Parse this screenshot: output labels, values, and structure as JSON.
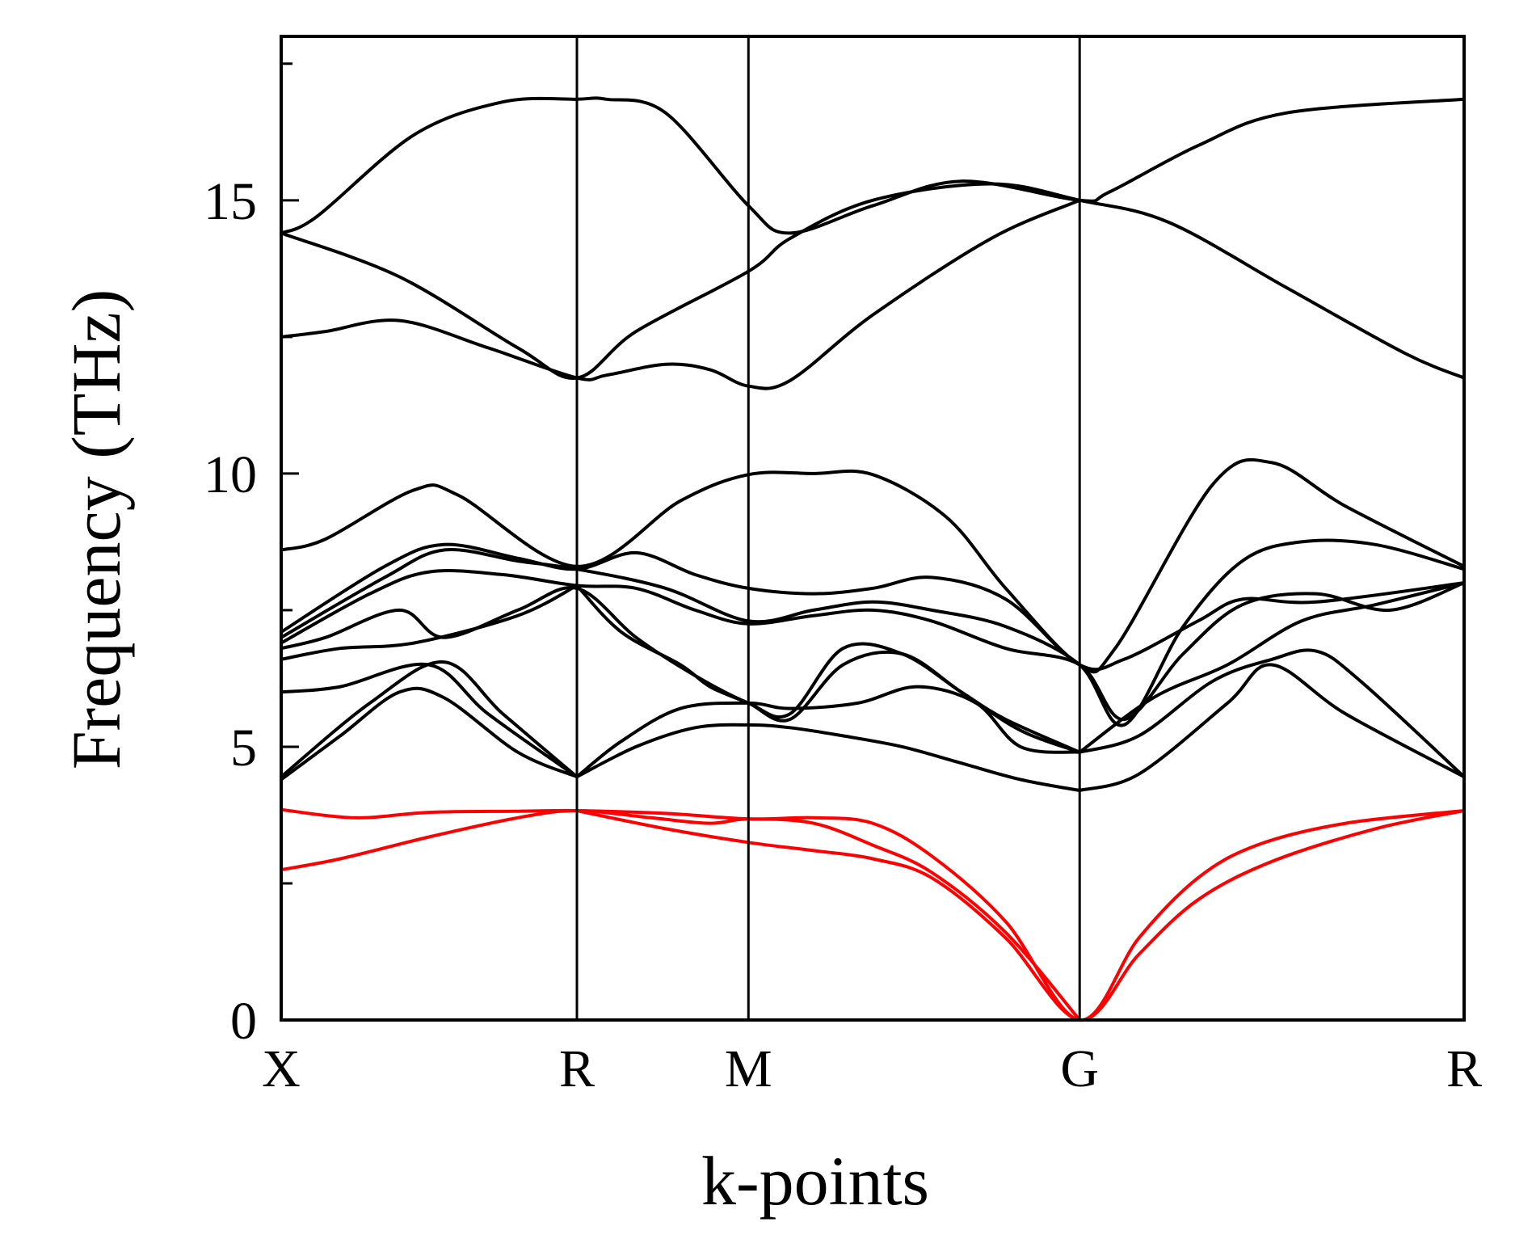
{
  "chart_data": {
    "type": "line",
    "title": "",
    "xlabel": "k-points",
    "ylabel": "Frequency (THz)",
    "ylim": [
      0,
      18
    ],
    "yticks": [
      0,
      5,
      10,
      15
    ],
    "y_minor_ticks": [
      2.5,
      7.5,
      12.5,
      17.5
    ],
    "xlim": [
      0,
      4
    ],
    "x_tick_positions": [
      0,
      1,
      1.58,
      2.7,
      4
    ],
    "x_tick_labels": [
      "X",
      "R",
      "M",
      "G",
      "R"
    ],
    "grid": false,
    "legend": "none",
    "colors": {
      "optical": "#000000",
      "acoustic": "#ff0000",
      "frame": "#000000"
    },
    "series": [
      {
        "group": "optical",
        "x": [
          0,
          0.12,
          0.45,
          0.75,
          1.0,
          1.1,
          1.3,
          1.58,
          1.72,
          2.0,
          2.3,
          2.7,
          2.8,
          3.1,
          3.4,
          4.0
        ],
        "values": [
          14.4,
          14.7,
          16.2,
          16.8,
          16.85,
          16.85,
          16.6,
          14.9,
          14.4,
          14.9,
          15.35,
          15.0,
          15.15,
          16.0,
          16.6,
          16.85
        ]
      },
      {
        "group": "optical",
        "x": [
          0,
          0.4,
          0.8,
          1.0,
          1.2,
          1.58,
          1.72,
          2.0,
          2.4,
          2.7,
          3.0,
          3.4,
          3.8,
          4.0
        ],
        "values": [
          14.4,
          13.6,
          12.3,
          11.75,
          12.6,
          13.7,
          14.3,
          15.0,
          15.3,
          15.0,
          14.6,
          13.4,
          12.2,
          11.75
        ]
      },
      {
        "group": "optical",
        "x": [
          0,
          0.15,
          0.4,
          0.7,
          1.0,
          1.1,
          1.3,
          1.45,
          1.58,
          1.72,
          2.0,
          2.4,
          2.7
        ],
        "values": [
          12.5,
          12.6,
          12.8,
          12.3,
          11.75,
          11.8,
          12.0,
          11.9,
          11.6,
          11.7,
          12.9,
          14.3,
          15.0
        ]
      },
      {
        "group": "optical",
        "x": [
          0,
          0.15,
          0.45,
          0.6,
          1.0,
          1.35,
          1.58,
          1.8,
          2.0,
          2.25,
          2.45,
          2.7,
          2.82,
          3.15,
          3.35,
          3.6,
          4.0
        ],
        "values": [
          8.6,
          8.8,
          9.7,
          9.6,
          8.3,
          9.5,
          9.98,
          10.0,
          9.98,
          9.2,
          7.9,
          6.5,
          6.8,
          9.8,
          10.2,
          9.4,
          8.3
        ]
      },
      {
        "group": "optical",
        "x": [
          0,
          0.35,
          0.55,
          0.8,
          1.0,
          1.2,
          1.4,
          1.58,
          1.8,
          2.0,
          2.2,
          2.45,
          2.7,
          2.85,
          3.1,
          3.25,
          3.5,
          4.0
        ],
        "values": [
          7.1,
          8.3,
          8.7,
          8.45,
          8.25,
          8.55,
          8.15,
          7.9,
          7.8,
          7.9,
          8.1,
          7.7,
          6.5,
          6.6,
          7.3,
          7.7,
          7.65,
          8.0
        ]
      },
      {
        "group": "optical",
        "x": [
          0,
          0.35,
          0.55,
          0.8,
          1.0,
          1.3,
          1.58,
          1.8,
          2.0,
          2.2,
          2.45,
          2.7,
          2.85,
          3.05,
          3.25,
          3.45,
          3.7,
          4.0
        ],
        "values": [
          7.0,
          8.1,
          8.6,
          8.4,
          8.25,
          7.9,
          7.3,
          7.5,
          7.65,
          7.5,
          7.2,
          6.5,
          5.4,
          7.2,
          8.4,
          8.75,
          8.7,
          8.25
        ]
      },
      {
        "group": "optical",
        "x": [
          0,
          0.3,
          0.5,
          0.75,
          1.0,
          1.2,
          1.4,
          1.58,
          1.8,
          2.0,
          2.2,
          2.45,
          2.7,
          2.85,
          3.05,
          3.25,
          3.5,
          3.75,
          4.0
        ],
        "values": [
          6.9,
          7.8,
          8.2,
          8.15,
          7.95,
          7.9,
          7.5,
          7.25,
          7.4,
          7.5,
          7.3,
          6.8,
          6.5,
          5.5,
          6.7,
          7.6,
          7.8,
          7.5,
          8.0
        ]
      },
      {
        "group": "optical",
        "x": [
          0,
          0.15,
          0.4,
          0.55,
          0.8,
          1.0,
          1.2,
          1.4,
          1.58,
          1.72,
          1.9,
          2.1,
          2.3,
          2.45,
          2.7
        ],
        "values": [
          6.8,
          7.0,
          7.5,
          7.0,
          7.5,
          7.9,
          7.0,
          6.3,
          5.8,
          5.6,
          6.8,
          6.7,
          6.0,
          5.5,
          4.9
        ]
      },
      {
        "group": "optical",
        "x": [
          0,
          0.2,
          0.45,
          0.8,
          1.0
        ],
        "values": [
          6.6,
          6.8,
          6.9,
          7.4,
          7.95
        ]
      },
      {
        "group": "optical",
        "x": [
          0,
          0.2,
          0.5,
          0.7,
          1.0
        ],
        "values": [
          6.0,
          6.1,
          6.5,
          5.6,
          4.45
        ]
      },
      {
        "group": "optical",
        "x": [
          0,
          0.2,
          0.4,
          0.55,
          0.8,
          1.0
        ],
        "values": [
          4.4,
          5.2,
          6.0,
          5.9,
          4.9,
          4.45
        ]
      },
      {
        "group": "optical",
        "x": [
          0,
          0.3,
          0.55,
          0.75,
          1.0
        ],
        "values": [
          4.45,
          5.8,
          6.55,
          5.6,
          4.45
        ]
      },
      {
        "group": "optical",
        "x": [
          1.0,
          1.2,
          1.4,
          1.58,
          1.72,
          1.9,
          2.1,
          2.3,
          2.5,
          2.7
        ],
        "values": [
          4.45,
          5.0,
          5.35,
          5.4,
          5.35,
          5.2,
          5.0,
          4.7,
          4.4,
          4.2
        ]
      },
      {
        "group": "optical",
        "x": [
          1.0,
          1.15,
          1.35,
          1.58,
          1.72,
          1.95,
          2.15,
          2.35,
          2.5,
          2.7
        ],
        "values": [
          4.45,
          5.1,
          5.7,
          5.8,
          5.7,
          5.8,
          6.1,
          5.8,
          5.0,
          4.9
        ]
      },
      {
        "group": "optical",
        "x": [
          1.0,
          1.15,
          1.35,
          1.45,
          1.58,
          1.72,
          1.9,
          2.1,
          2.3,
          2.5,
          2.7
        ],
        "values": [
          7.95,
          7.1,
          6.5,
          6.1,
          5.8,
          5.5,
          6.5,
          6.7,
          6.0,
          5.3,
          4.9
        ]
      },
      {
        "group": "optical",
        "x": [
          2.7,
          2.9,
          3.2,
          3.35,
          3.6,
          4.0
        ],
        "values": [
          4.2,
          4.5,
          5.8,
          6.5,
          5.6,
          4.45
        ]
      },
      {
        "group": "optical",
        "x": [
          2.7,
          2.9,
          3.15,
          3.35,
          3.5,
          3.65,
          4.0
        ],
        "values": [
          4.9,
          5.2,
          6.2,
          6.6,
          6.75,
          6.2,
          4.45
        ]
      },
      {
        "group": "optical",
        "x": [
          2.7,
          2.95,
          3.2,
          3.45,
          3.7,
          4.0
        ],
        "values": [
          4.9,
          5.9,
          6.5,
          7.3,
          7.6,
          8.0
        ]
      },
      {
        "group": "acoustic",
        "x": [
          0,
          0.25,
          0.5,
          0.8,
          1.0,
          1.3,
          1.58,
          1.8,
          2.0,
          2.2,
          2.45,
          2.7,
          2.9,
          3.1,
          3.3,
          3.6,
          4.0
        ],
        "values": [
          3.85,
          3.7,
          3.8,
          3.82,
          3.83,
          3.78,
          3.68,
          3.7,
          3.6,
          3.0,
          1.8,
          0.0,
          1.5,
          2.6,
          3.2,
          3.6,
          3.83
        ]
      },
      {
        "group": "acoustic",
        "x": [
          0,
          0.2,
          0.5,
          0.8,
          1.0,
          1.25,
          1.45,
          1.58,
          1.8,
          2.0,
          2.2,
          2.45,
          2.7
        ],
        "values": [
          2.75,
          2.95,
          3.35,
          3.7,
          3.83,
          3.7,
          3.6,
          3.68,
          3.6,
          3.2,
          2.7,
          1.6,
          0.0
        ]
      },
      {
        "group": "acoustic",
        "x": [
          1.0,
          1.3,
          1.58,
          1.8,
          2.0,
          2.2,
          2.45,
          2.7,
          2.9,
          3.1,
          3.35,
          3.7,
          4.0
        ],
        "values": [
          3.83,
          3.5,
          3.25,
          3.1,
          2.95,
          2.6,
          1.5,
          0.0,
          1.2,
          2.2,
          2.9,
          3.5,
          3.83
        ]
      }
    ]
  }
}
